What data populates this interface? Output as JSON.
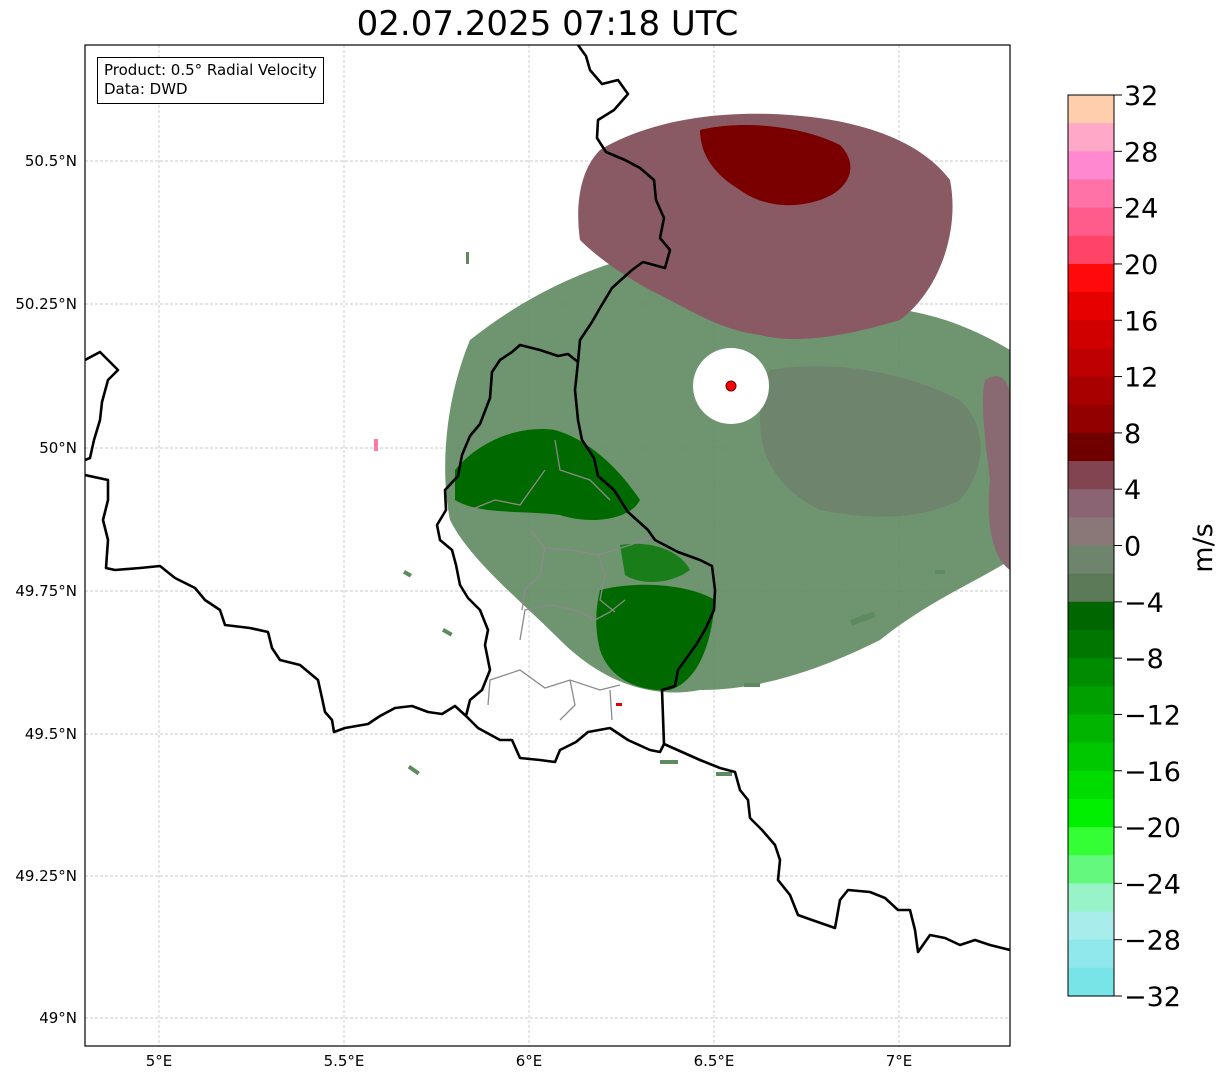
{
  "title": "02.07.2025 07:18 UTC",
  "info_box": {
    "product": "Product: 0.5° Radial Velocity",
    "data": "Data: DWD"
  },
  "map": {
    "type": "radar-radial-velocity",
    "extent_lon": [
      4.8,
      7.3
    ],
    "extent_lat": [
      48.95,
      50.7
    ],
    "lon_ticks": [
      "5°E",
      "5.5°E",
      "6°E",
      "6.5°E",
      "7°E"
    ],
    "lat_ticks": [
      "49°N",
      "49.25°N",
      "49.5°N",
      "49.75°N",
      "50°N",
      "50.25°N",
      "50.5°N"
    ],
    "grid": true,
    "radar_site": {
      "lon": 6.55,
      "lat": 50.11,
      "color": "#ff0000"
    }
  },
  "colorbar": {
    "label": "m/s",
    "range": [
      -32,
      32
    ],
    "tick_labels": [
      "32",
      "28",
      "24",
      "20",
      "16",
      "12",
      "8",
      "4",
      "0",
      "−4",
      "−8",
      "−12",
      "−16",
      "−20",
      "−24",
      "−28",
      "−32"
    ],
    "colors_top_to_bottom": [
      "#ffcfad",
      "#ffa8c8",
      "#ff88d0",
      "#ff72a8",
      "#ff5c8c",
      "#ff4468",
      "#ff0a0a",
      "#e60000",
      "#d00000",
      "#bd0000",
      "#a80000",
      "#920000",
      "#700000",
      "#824450",
      "#8a6472",
      "#8a7878",
      "#6e846c",
      "#5c7a58",
      "#006600",
      "#007800",
      "#008c00",
      "#00a000",
      "#00b400",
      "#00c800",
      "#00dc00",
      "#00f000",
      "#34ff34",
      "#64f87e",
      "#98f4c8",
      "#a8ecec",
      "#90e8ec",
      "#78e4e8"
    ]
  },
  "colors": {
    "inbound_strong": "#006a00",
    "inbound_weak": "#5e8a60",
    "outbound_weak": "#8a5a64",
    "outbound_strong": "#7a0000"
  }
}
